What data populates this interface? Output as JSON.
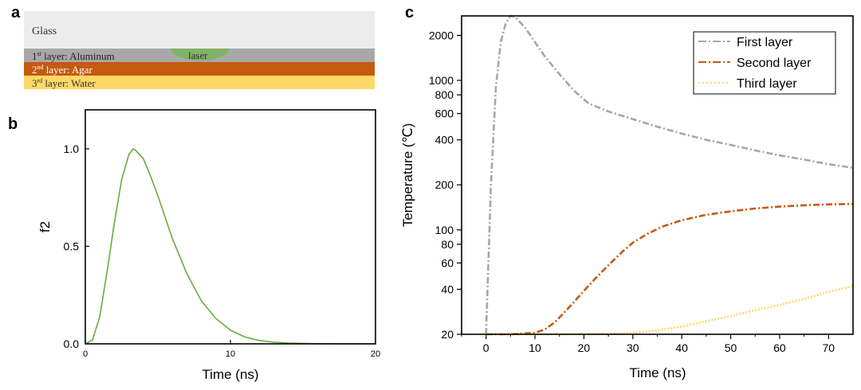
{
  "panel_labels": {
    "a": "a",
    "b": "b",
    "c": "c"
  },
  "colors": {
    "glass": "#ececec",
    "aluminum": "#a8a8a8",
    "agar": "#c55a11",
    "water": "#ffd966",
    "laser": "#78b459",
    "f2_curve": "#6aab42",
    "first_layer": "#a6a6a6",
    "second_layer": "#c55a11",
    "third_layer": "#ffd966"
  },
  "panel_a": {
    "glass": "Glass",
    "laser": "laser",
    "layer1": {
      "num": "1",
      "sup": "st",
      "text": " layer: Aluminum"
    },
    "layer2": {
      "num": "2",
      "sup": "nd",
      "text": " layer: Agar"
    },
    "layer3": {
      "num": "3",
      "sup": "rd",
      "text": " layer: Water"
    }
  },
  "chart_data": [
    {
      "type": "line",
      "panel": "b",
      "title": "",
      "xlabel": "Time (ns)",
      "ylabel": "f2",
      "xlim": [
        0,
        20
      ],
      "ylim": [
        0,
        1.2
      ],
      "xticks": [
        0,
        10,
        20
      ],
      "yticks": [
        0.0,
        0.5,
        1.0
      ],
      "ytick_labels": [
        "0.0",
        "0.5",
        "1.0"
      ],
      "series": [
        {
          "x": [
            0,
            0.5,
            1,
            1.5,
            2,
            2.5,
            3,
            3.3,
            3.5,
            4,
            4.5,
            5,
            5.5,
            6,
            7,
            8,
            9,
            10,
            11,
            12,
            13,
            14,
            16,
            18,
            20
          ],
          "values": [
            0,
            0.02,
            0.14,
            0.37,
            0.62,
            0.84,
            0.97,
            1.0,
            0.99,
            0.95,
            0.86,
            0.76,
            0.65,
            0.54,
            0.36,
            0.22,
            0.13,
            0.07,
            0.035,
            0.017,
            0.008,
            0.004,
            0.001,
            0.0,
            0.0
          ]
        }
      ]
    },
    {
      "type": "line",
      "panel": "c",
      "title": "",
      "xlabel": "Time (ns)",
      "ylabel": "Temperature (℃)",
      "xlim": [
        -5,
        75
      ],
      "ylim": [
        20,
        2700
      ],
      "yscale": "log",
      "xticks": [
        0,
        10,
        20,
        30,
        40,
        50,
        60,
        70
      ],
      "yticks": [
        20,
        40,
        60,
        80,
        100,
        200,
        400,
        600,
        800,
        1000,
        2000
      ],
      "legend_position": "top-right",
      "series": [
        {
          "name": "First layer",
          "x": [
            0,
            1,
            2,
            3,
            4,
            5,
            6,
            8,
            10,
            12,
            15,
            18,
            21,
            25,
            30,
            35,
            40,
            45,
            50,
            55,
            60,
            65,
            70,
            75
          ],
          "values": [
            20,
            200,
            900,
            1800,
            2400,
            2700,
            2650,
            2250,
            1800,
            1450,
            1100,
            850,
            700,
            620,
            550,
            490,
            440,
            400,
            370,
            340,
            315,
            295,
            275,
            260
          ]
        },
        {
          "name": "Second layer",
          "x": [
            0,
            5,
            10,
            12,
            14,
            16,
            18,
            20,
            22,
            25,
            28,
            30,
            33,
            36,
            40,
            45,
            50,
            55,
            60,
            65,
            70,
            75
          ],
          "values": [
            20,
            20,
            20.5,
            21.5,
            24,
            28,
            33,
            39,
            46,
            58,
            72,
            82,
            94,
            105,
            116,
            126,
            133,
            139,
            143,
            146,
            148,
            149
          ]
        },
        {
          "name": "Third layer",
          "x": [
            0,
            10,
            20,
            25,
            30,
            35,
            40,
            45,
            50,
            55,
            60,
            65,
            70,
            75
          ],
          "values": [
            20,
            20,
            20,
            20.1,
            20.5,
            21.3,
            22.5,
            24.5,
            26.5,
            29,
            31.5,
            34.5,
            38.5,
            42
          ]
        }
      ]
    }
  ]
}
